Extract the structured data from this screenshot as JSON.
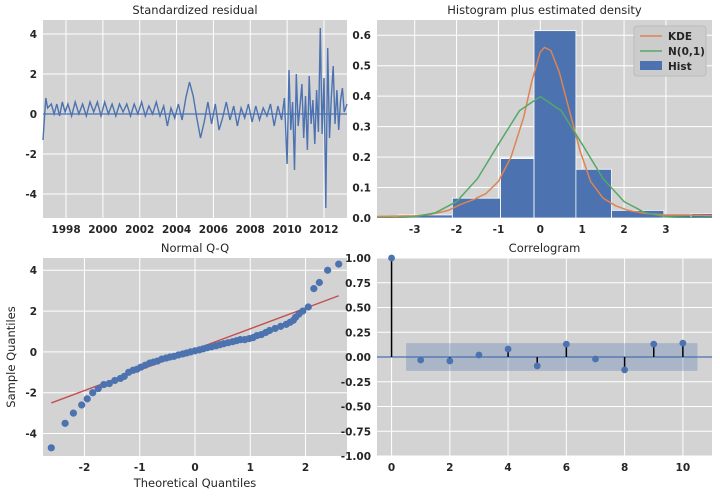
{
  "chart_data": [
    {
      "type": "line",
      "title": "Standardized residual",
      "xlabel": "",
      "ylabel": "",
      "xlim": [
        1996.75,
        2013.25
      ],
      "ylim": [
        -5.2,
        4.7
      ],
      "xticks": [
        "1998",
        "2000",
        "2002",
        "2004",
        "2006",
        "2008",
        "2010",
        "2012"
      ],
      "yticks": [
        "-4",
        "-2",
        "0",
        "2",
        "4"
      ],
      "grid": true,
      "colors": {
        "line": "#4c72b0",
        "zero": "#4c72b0",
        "bg": "#d3d3d3"
      },
      "series": [
        {
          "values": [
            [
              1996.75,
              -1.3
            ],
            [
              1996.9,
              0.8
            ],
            [
              1997.0,
              0.3
            ],
            [
              1997.2,
              0.5
            ],
            [
              1997.35,
              0.0
            ],
            [
              1997.5,
              0.5
            ],
            [
              1997.65,
              -0.1
            ],
            [
              1997.8,
              0.6
            ],
            [
              1997.95,
              0.1
            ],
            [
              1998.1,
              0.5
            ],
            [
              1998.3,
              -0.1
            ],
            [
              1998.5,
              0.6
            ],
            [
              1998.7,
              0.0
            ],
            [
              1998.9,
              0.5
            ],
            [
              1999.1,
              -0.1
            ],
            [
              1999.3,
              0.6
            ],
            [
              1999.5,
              0.1
            ],
            [
              1999.7,
              0.6
            ],
            [
              1999.9,
              -0.1
            ],
            [
              2000.1,
              0.6
            ],
            [
              2000.3,
              0.0
            ],
            [
              2000.5,
              0.5
            ],
            [
              2000.7,
              -0.1
            ],
            [
              2000.9,
              0.5
            ],
            [
              2001.1,
              0.1
            ],
            [
              2001.3,
              0.5
            ],
            [
              2001.5,
              -0.1
            ],
            [
              2001.7,
              0.5
            ],
            [
              2001.9,
              0.0
            ],
            [
              2002.1,
              0.6
            ],
            [
              2002.3,
              -0.1
            ],
            [
              2002.5,
              0.4
            ],
            [
              2002.7,
              0.0
            ],
            [
              2002.9,
              0.6
            ],
            [
              2003.1,
              -0.1
            ],
            [
              2003.3,
              0.4
            ],
            [
              2003.5,
              -0.6
            ],
            [
              2003.7,
              0.3
            ],
            [
              2003.9,
              -0.2
            ],
            [
              2004.1,
              0.5
            ],
            [
              2004.3,
              -0.3
            ],
            [
              2004.5,
              0.8
            ],
            [
              2004.7,
              1.6
            ],
            [
              2004.9,
              0.9
            ],
            [
              2005.1,
              -0.2
            ],
            [
              2005.3,
              -1.2
            ],
            [
              2005.5,
              -0.4
            ],
            [
              2005.7,
              0.6
            ],
            [
              2005.9,
              -0.5
            ],
            [
              2006.1,
              0.5
            ],
            [
              2006.3,
              -0.8
            ],
            [
              2006.5,
              -0.2
            ],
            [
              2006.7,
              0.6
            ],
            [
              2006.9,
              -0.3
            ],
            [
              2007.1,
              0.4
            ],
            [
              2007.3,
              -0.6
            ],
            [
              2007.5,
              0.3
            ],
            [
              2007.7,
              -0.2
            ],
            [
              2007.9,
              0.5
            ],
            [
              2008.1,
              -0.4
            ],
            [
              2008.3,
              0.4
            ],
            [
              2008.5,
              -0.3
            ],
            [
              2008.7,
              0.3
            ],
            [
              2008.9,
              -0.1
            ],
            [
              2009.1,
              0.5
            ],
            [
              2009.3,
              -0.6
            ],
            [
              2009.5,
              0.4
            ],
            [
              2009.7,
              -0.3
            ],
            [
              2009.85,
              0.8
            ],
            [
              2010.0,
              -2.5
            ],
            [
              2010.1,
              2.2
            ],
            [
              2010.2,
              -0.8
            ],
            [
              2010.3,
              0.6
            ],
            [
              2010.4,
              -2.8
            ],
            [
              2010.5,
              2.0
            ],
            [
              2010.6,
              -0.6
            ],
            [
              2010.7,
              0.4
            ],
            [
              2010.8,
              1.5
            ],
            [
              2010.9,
              -1.2
            ],
            [
              2011.0,
              0.9
            ],
            [
              2011.1,
              -1.8
            ],
            [
              2011.2,
              1.9
            ],
            [
              2011.3,
              -0.5
            ],
            [
              2011.4,
              0.7
            ],
            [
              2011.5,
              -1.5
            ],
            [
              2011.6,
              1.2
            ],
            [
              2011.7,
              -0.9
            ],
            [
              2011.8,
              4.3
            ],
            [
              2011.9,
              -1.0
            ],
            [
              2012.0,
              1.8
            ],
            [
              2012.1,
              -4.7
            ],
            [
              2012.2,
              3.3
            ],
            [
              2012.3,
              -1.2
            ],
            [
              2012.4,
              0.8
            ],
            [
              2012.5,
              2.4
            ],
            [
              2012.6,
              -0.5
            ],
            [
              2012.7,
              1.2
            ],
            [
              2012.8,
              -0.8
            ],
            [
              2012.9,
              0.7
            ],
            [
              2013.0,
              1.3
            ],
            [
              2013.1,
              0.1
            ],
            [
              2013.25,
              0.5
            ]
          ]
        }
      ]
    },
    {
      "type": "bar",
      "title": "Histogram plus estimated density",
      "xlabel": "",
      "ylabel": "",
      "xlim": [
        -3.9,
        4.1
      ],
      "ylim": [
        0,
        0.65
      ],
      "xticks": [
        "-3",
        "-2",
        "-1",
        "0",
        "1",
        "2",
        "3"
      ],
      "yticks": [
        "0.0",
        "0.1",
        "0.2",
        "0.3",
        "0.4",
        "0.5",
        "0.6"
      ],
      "grid": true,
      "legend_position": "top-right",
      "colors": {
        "hist": "#4c72b0",
        "kde": "#dd8452",
        "normal": "#55a868"
      },
      "bins": [
        {
          "left": -4.7,
          "right": -3.4,
          "value": 0.005
        },
        {
          "left": -3.4,
          "right": -2.1,
          "value": 0.01
        },
        {
          "left": -2.1,
          "right": -0.95,
          "value": 0.065
        },
        {
          "left": -0.95,
          "right": -0.15,
          "value": 0.195
        },
        {
          "left": -0.15,
          "right": 0.85,
          "value": 0.615
        },
        {
          "left": 0.85,
          "right": 1.7,
          "value": 0.16
        },
        {
          "left": 1.7,
          "right": 2.95,
          "value": 0.025
        },
        {
          "left": 2.95,
          "right": 3.6,
          "value": 0.01
        },
        {
          "left": 3.6,
          "right": 4.3,
          "value": 0.015
        }
      ],
      "series": [
        {
          "name": "KDE",
          "values": [
            [
              -3.9,
              0.005
            ],
            [
              -3.0,
              0.007
            ],
            [
              -2.6,
              0.012
            ],
            [
              -2.2,
              0.025
            ],
            [
              -1.9,
              0.045
            ],
            [
              -1.6,
              0.06
            ],
            [
              -1.3,
              0.08
            ],
            [
              -1.0,
              0.12
            ],
            [
              -0.7,
              0.2
            ],
            [
              -0.4,
              0.33
            ],
            [
              -0.2,
              0.45
            ],
            [
              0.0,
              0.545
            ],
            [
              0.1,
              0.56
            ],
            [
              0.25,
              0.55
            ],
            [
              0.45,
              0.48
            ],
            [
              0.7,
              0.35
            ],
            [
              0.95,
              0.22
            ],
            [
              1.2,
              0.12
            ],
            [
              1.5,
              0.065
            ],
            [
              1.8,
              0.04
            ],
            [
              2.1,
              0.025
            ],
            [
              2.5,
              0.015
            ],
            [
              3.0,
              0.01
            ],
            [
              3.5,
              0.01
            ],
            [
              4.1,
              0.008
            ]
          ]
        },
        {
          "name": "N(0,1)",
          "values": [
            [
              -3.9,
              0.0002
            ],
            [
              -3.5,
              0.0009
            ],
            [
              -3.0,
              0.0044
            ],
            [
              -2.5,
              0.0175
            ],
            [
              -2.0,
              0.054
            ],
            [
              -1.5,
              0.1295
            ],
            [
              -1.0,
              0.242
            ],
            [
              -0.5,
              0.352
            ],
            [
              0.0,
              0.399
            ],
            [
              0.5,
              0.352
            ],
            [
              1.0,
              0.242
            ],
            [
              1.5,
              0.1295
            ],
            [
              2.0,
              0.054
            ],
            [
              2.5,
              0.0175
            ],
            [
              3.0,
              0.0044
            ],
            [
              3.5,
              0.0009
            ],
            [
              4.1,
              0.0001
            ]
          ]
        }
      ],
      "legend": [
        "KDE",
        "N(0,1)",
        "Hist"
      ]
    },
    {
      "type": "scatter",
      "title": "Normal Q-Q",
      "xlabel": "Theoretical Quantiles",
      "ylabel": "Sample Quantiles",
      "xlim": [
        -2.75,
        2.75
      ],
      "ylim": [
        -5.1,
        4.6
      ],
      "xticks": [
        "-2",
        "-1",
        "0",
        "1",
        "2"
      ],
      "yticks": [
        "-4",
        "-2",
        "0",
        "2",
        "4"
      ],
      "grid": true,
      "colors": {
        "points": "#4c72b0",
        "line": "#c44e52"
      },
      "reference_line": [
        [
          -2.6,
          -2.5
        ],
        [
          2.6,
          2.75
        ]
      ],
      "points": [
        [
          -2.6,
          -4.7
        ],
        [
          -2.35,
          -3.5
        ],
        [
          -2.2,
          -3.0
        ],
        [
          -2.05,
          -2.6
        ],
        [
          -1.95,
          -2.3
        ],
        [
          -1.85,
          -2.0
        ],
        [
          -1.75,
          -1.8
        ],
        [
          -1.65,
          -1.6
        ],
        [
          -1.55,
          -1.55
        ],
        [
          -1.45,
          -1.4
        ],
        [
          -1.35,
          -1.3
        ],
        [
          -1.28,
          -1.2
        ],
        [
          -1.2,
          -1.0
        ],
        [
          -1.12,
          -0.9
        ],
        [
          -1.05,
          -0.85
        ],
        [
          -0.98,
          -0.75
        ],
        [
          -0.9,
          -0.65
        ],
        [
          -0.82,
          -0.55
        ],
        [
          -0.75,
          -0.5
        ],
        [
          -0.68,
          -0.45
        ],
        [
          -0.6,
          -0.35
        ],
        [
          -0.52,
          -0.3
        ],
        [
          -0.45,
          -0.25
        ],
        [
          -0.38,
          -0.22
        ],
        [
          -0.3,
          -0.15
        ],
        [
          -0.22,
          -0.1
        ],
        [
          -0.15,
          -0.05
        ],
        [
          -0.08,
          0.0
        ],
        [
          0.0,
          0.05
        ],
        [
          0.08,
          0.1
        ],
        [
          0.15,
          0.15
        ],
        [
          0.22,
          0.2
        ],
        [
          0.3,
          0.25
        ],
        [
          0.38,
          0.3
        ],
        [
          0.45,
          0.35
        ],
        [
          0.52,
          0.4
        ],
        [
          0.6,
          0.45
        ],
        [
          0.68,
          0.5
        ],
        [
          0.75,
          0.55
        ],
        [
          0.82,
          0.6
        ],
        [
          0.9,
          0.6
        ],
        [
          0.98,
          0.65
        ],
        [
          1.05,
          0.7
        ],
        [
          1.12,
          0.8
        ],
        [
          1.2,
          0.85
        ],
        [
          1.28,
          0.95
        ],
        [
          1.35,
          1.05
        ],
        [
          1.45,
          1.15
        ],
        [
          1.55,
          1.25
        ],
        [
          1.65,
          1.35
        ],
        [
          1.72,
          1.45
        ],
        [
          1.78,
          1.55
        ],
        [
          1.82,
          1.7
        ],
        [
          1.88,
          1.85
        ],
        [
          1.95,
          2.0
        ],
        [
          2.05,
          2.2
        ],
        [
          2.15,
          3.1
        ],
        [
          2.25,
          3.4
        ],
        [
          2.4,
          4.0
        ],
        [
          2.6,
          4.3
        ]
      ]
    },
    {
      "type": "bar",
      "title": "Correlogram",
      "xlabel": "",
      "ylabel": "",
      "xlim": [
        -0.5,
        11.0
      ],
      "ylim": [
        -1.0,
        1.0
      ],
      "xticks": [
        "0",
        "2",
        "4",
        "6",
        "8",
        "10"
      ],
      "yticks": [
        "-1.00",
        "-0.75",
        "-0.50",
        "-0.25",
        "0.00",
        "0.25",
        "0.50",
        "0.75",
        "1.00"
      ],
      "grid": true,
      "colors": {
        "stem": "#000000",
        "marker": "#4c72b0",
        "band": "#4c72b0"
      },
      "confidence_band": 0.14,
      "lags": [
        0,
        1,
        2,
        3,
        4,
        5,
        6,
        7,
        8,
        9,
        10
      ],
      "values": [
        1.0,
        -0.03,
        -0.04,
        0.02,
        0.08,
        -0.09,
        0.13,
        -0.02,
        -0.13,
        0.13,
        0.14
      ]
    }
  ]
}
